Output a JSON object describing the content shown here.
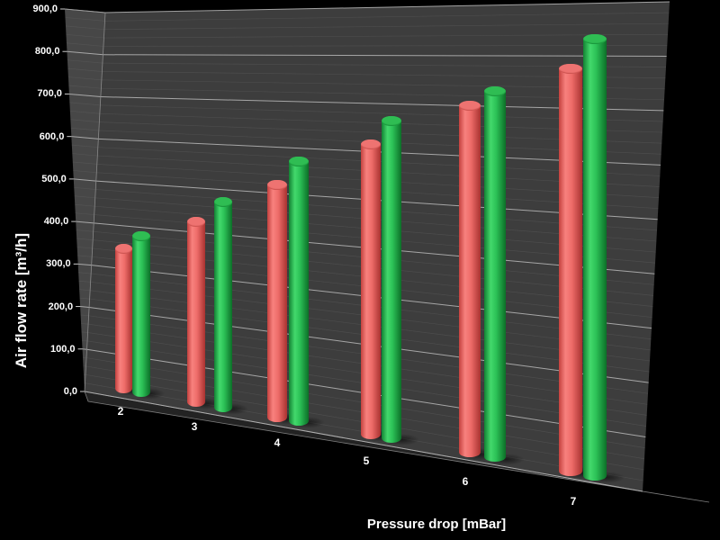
{
  "chart_data": {
    "type": "bar",
    "subtype": "3d-cylinder",
    "title": "",
    "xlabel": "Pressure drop [mBar]",
    "ylabel": "Air flow rate [m³/h]",
    "categories": [
      "2",
      "3",
      "4",
      "5",
      "6",
      "7"
    ],
    "series": [
      {
        "name": "red",
        "color": "#e4615d",
        "values": [
          350,
          430,
          525,
          620,
          700,
          770
        ]
      },
      {
        "name": "green",
        "color": "#22ab44",
        "values": [
          385,
          480,
          580,
          670,
          730,
          825
        ]
      }
    ],
    "ylim": [
      0,
      900
    ],
    "y_major_step": 100,
    "y_minor_step": 20,
    "y_tick_labels": [
      "0,0",
      "100,0",
      "200,0",
      "300,0",
      "400,0",
      "500,0",
      "600,0",
      "700,0",
      "800,0",
      "900,0"
    ],
    "grid": true,
    "legend": false,
    "background_color": "#000000",
    "wall_color": "#3d3d3d",
    "side_wall_color": "#474747",
    "floor_color": "#232323",
    "gridline_major_color": "#b8b8b8",
    "gridline_minor_color": "#6a6a6a",
    "text_color": "#ffffff"
  }
}
